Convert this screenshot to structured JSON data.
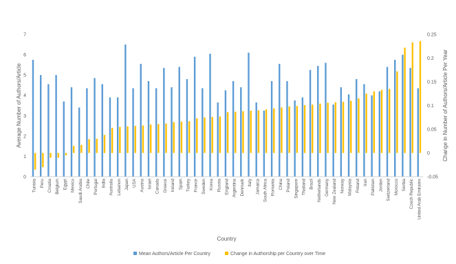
{
  "chart_data": {
    "type": "bar",
    "title": "",
    "xlabel": "Country",
    "ylabel": "Average Number of Authors/Article",
    "y2label": "Change in Number of Authors/Article Per Year",
    "ylim": [
      0,
      7
    ],
    "y2lim": [
      -0.05,
      0.25
    ],
    "yticks": [
      "0",
      "1",
      "2",
      "3",
      "4",
      "5",
      "6",
      "7"
    ],
    "y2ticks": [
      "-0.05",
      "0",
      "0.05",
      "0.1",
      "0.15",
      "0.2",
      "0.25"
    ],
    "grid": false,
    "legend_position": "bottom",
    "colors": {
      "primary": "#5b9bd5",
      "secondary": "#ffc000",
      "axis": "#bfbfbf",
      "text": "#595959"
    },
    "categories": [
      "Tunisia",
      "Peru",
      "Croatia",
      "Belgium",
      "Egypt",
      "Mexico",
      "Saudi Arabia",
      "Chile",
      "Portugal",
      "India",
      "Australia",
      "Lebanon",
      "Japan",
      "USA",
      "Austria",
      "Israel",
      "Canada",
      "Greece",
      "Ireland",
      "Spain",
      "Turkey",
      "France",
      "Sweden",
      "Korea",
      "Russia",
      "England",
      "Argentina",
      "Denmark",
      "Italy",
      "Jamaica",
      "South Africa",
      "Romania",
      "China",
      "Poland",
      "Singapore",
      "Thailand",
      "Brazil",
      "Netherlands",
      "Germany",
      "New Zealand",
      "Norway",
      "Malaysia",
      "Finland",
      "Iran",
      "Pakistan",
      "Jordan",
      "Switzerland",
      "Morocco",
      "Serbia",
      "Czech Republic",
      "United Arab Emirates"
    ],
    "series": [
      {
        "name": "Mean Authors/Article Per Country",
        "axis": "left",
        "values": [
          5.75,
          5.0,
          4.55,
          5.0,
          3.7,
          4.4,
          3.4,
          4.35,
          4.85,
          4.55,
          3.9,
          3.9,
          6.5,
          4.35,
          5.55,
          4.7,
          4.35,
          5.35,
          4.4,
          5.4,
          4.8,
          5.9,
          4.35,
          6.05,
          3.65,
          4.25,
          4.7,
          4.4,
          6.1,
          3.65,
          3.25,
          4.7,
          5.55,
          4.7,
          3.75,
          3.9,
          5.25,
          5.45,
          5.6,
          3.55,
          4.4,
          4.05,
          4.8,
          4.55,
          4.0,
          4.2,
          5.4,
          5.75,
          6.0,
          5.35,
          4.35
        ]
      },
      {
        "name": "Change in Authorship per Country over Time",
        "axis": "right",
        "values": [
          -0.035,
          -0.03,
          -0.01,
          -0.01,
          -0.005,
          0.015,
          0.017,
          0.029,
          0.03,
          0.038,
          0.053,
          0.055,
          0.056,
          0.057,
          0.058,
          0.06,
          0.061,
          0.062,
          0.065,
          0.066,
          0.067,
          0.073,
          0.075,
          0.076,
          0.077,
          0.086,
          0.087,
          0.088,
          0.089,
          0.09,
          0.092,
          0.094,
          0.096,
          0.098,
          0.099,
          0.101,
          0.102,
          0.104,
          0.106,
          0.107,
          0.108,
          0.11,
          0.115,
          0.125,
          0.13,
          0.133,
          0.135,
          0.172,
          0.222,
          0.233,
          0.236
        ]
      }
    ]
  }
}
